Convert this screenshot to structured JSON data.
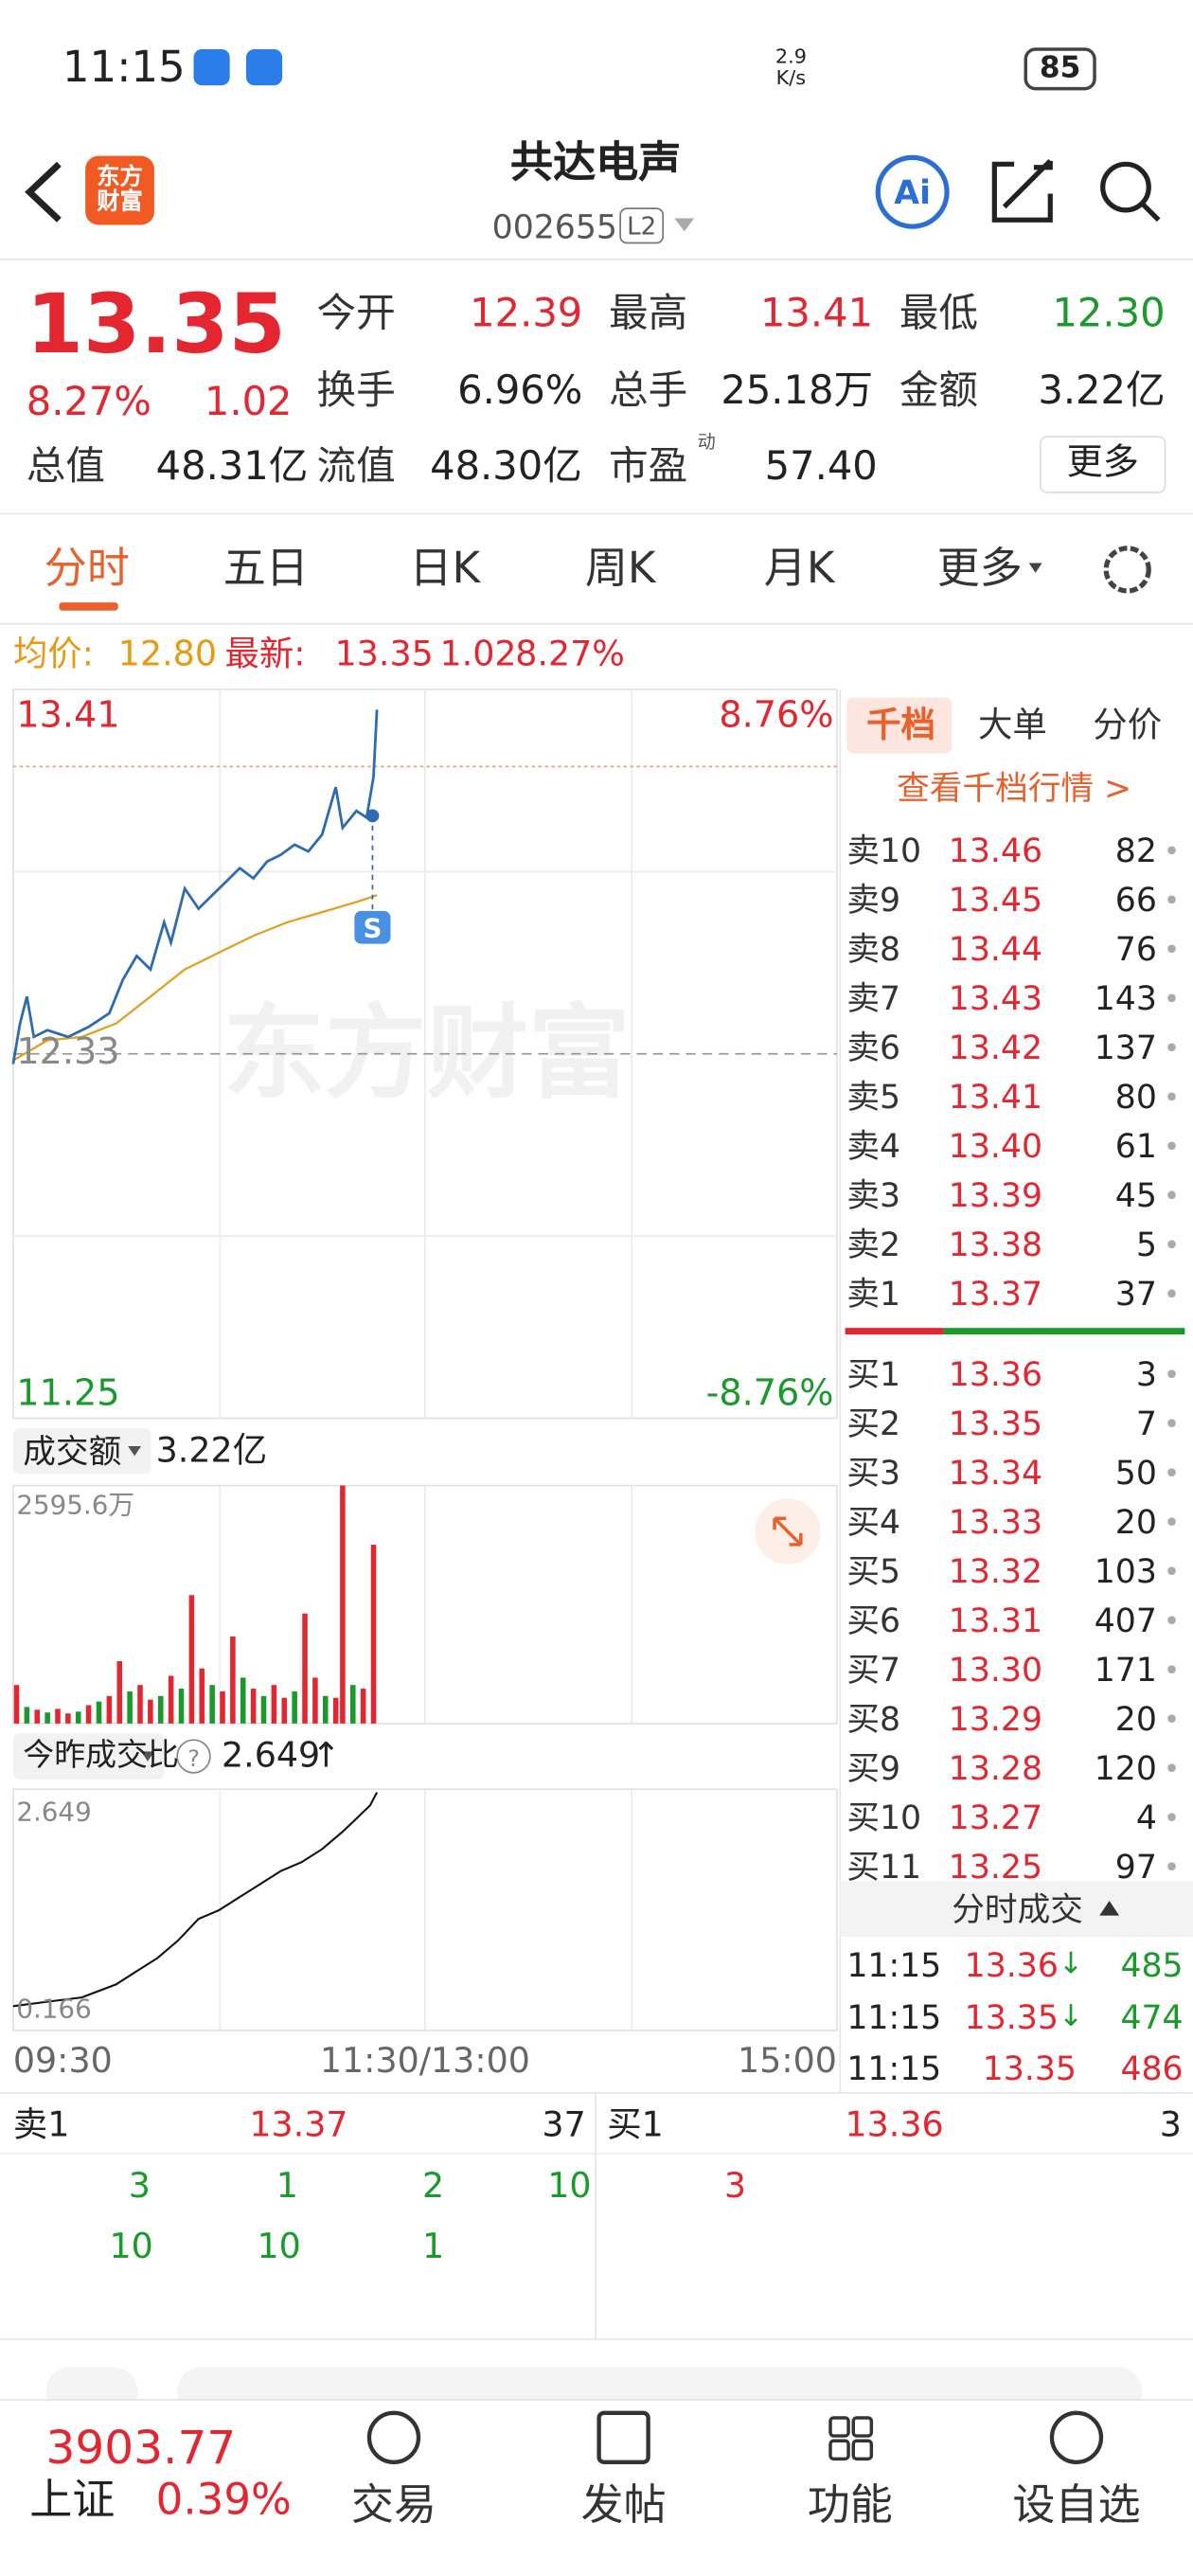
{
  "status_bar": {
    "time": "11:15",
    "net_speed": "2.9",
    "net_unit": "K/s",
    "battery": "85"
  },
  "header": {
    "logo": "东方财富",
    "title": "共达电声",
    "code": "002655",
    "level": "L2"
  },
  "quote": {
    "price": "13.35",
    "change_pct": "8.27%",
    "change": "1.02",
    "stats": [
      [
        {
          "label": "今开",
          "value": "12.39"
        },
        {
          "label": "最高",
          "value": "13.41"
        },
        {
          "label": "最低",
          "value": "12.30"
        }
      ],
      [
        {
          "label": "换手",
          "value": "6.96%"
        },
        {
          "label": "总手",
          "value": "25.18万"
        },
        {
          "label": "金额",
          "value": "3.22亿"
        }
      ],
      [
        {
          "label": "总值",
          "value": "48.31亿"
        },
        {
          "label": "流值",
          "value": "48.30亿"
        },
        {
          "label": "市盈",
          "sup": "动",
          "value": "57.40"
        }
      ]
    ],
    "more": "更多"
  },
  "tabs": [
    "分时",
    "五日",
    "日K",
    "周K",
    "月K",
    "更多"
  ],
  "info_line": {
    "avg_label": "均价:",
    "avg": "12.80",
    "latest_label": "最新:",
    "latest": "13.35",
    "change": "1.02",
    "change_pct": "8.27%"
  },
  "price_chart": {
    "type": "line",
    "watermark": "东方财富",
    "top_price": "13.41",
    "top_pct": "8.76%",
    "mid_price": "12.33",
    "bottom_price": "11.25",
    "bottom_pct": "-8.76%",
    "ylim": [
      11.25,
      13.41
    ],
    "xlim": [
      0,
      240
    ],
    "series": [
      {
        "name": "price",
        "color": "#2d6bb0",
        "x": [
          0,
          2,
          4,
          6,
          10,
          16,
          22,
          28,
          32,
          36,
          40,
          44,
          46,
          50,
          54,
          58,
          62,
          66,
          70,
          74,
          78,
          82,
          86,
          90,
          94,
          96,
          100,
          103,
          105,
          106
        ],
        "values": [
          12.3,
          12.42,
          12.5,
          12.38,
          12.4,
          12.38,
          12.41,
          12.45,
          12.55,
          12.62,
          12.58,
          12.72,
          12.66,
          12.82,
          12.76,
          12.8,
          12.84,
          12.88,
          12.85,
          12.9,
          12.92,
          12.95,
          12.93,
          12.98,
          13.12,
          13.0,
          13.05,
          13.03,
          13.15,
          13.35
        ]
      },
      {
        "name": "avg",
        "color": "#e0a020",
        "x": [
          0,
          10,
          20,
          30,
          40,
          50,
          60,
          70,
          80,
          90,
          100,
          106
        ],
        "values": [
          12.31,
          12.37,
          12.38,
          12.42,
          12.5,
          12.58,
          12.63,
          12.68,
          12.72,
          12.75,
          12.78,
          12.8
        ]
      }
    ],
    "time_labels": [
      "09:30",
      "11:30/13:00",
      "15:00"
    ]
  },
  "volume_chart": {
    "type": "bar",
    "selector": "成交额",
    "total": "3.22亿",
    "top_label": "2595.6万",
    "ylim": [
      0,
      2595.6
    ],
    "xlim": [
      0,
      240
    ],
    "x": [
      1,
      4,
      7,
      10,
      13,
      16,
      19,
      22,
      25,
      28,
      31,
      34,
      37,
      40,
      43,
      46,
      49,
      52,
      55,
      58,
      61,
      64,
      67,
      70,
      73,
      76,
      79,
      82,
      85,
      88,
      91,
      94,
      96,
      99,
      102,
      105
    ],
    "values": [
      420,
      180,
      150,
      120,
      160,
      110,
      130,
      200,
      240,
      300,
      680,
      350,
      420,
      260,
      300,
      520,
      380,
      1400,
      600,
      420,
      350,
      950,
      500,
      380,
      300,
      420,
      280,
      350,
      1200,
      500,
      300,
      280,
      2595.6,
      420,
      380,
      1950
    ],
    "colors": [
      "#e3262f",
      "#1a9a2a",
      "#e3262f",
      "#1a9a2a",
      "#e3262f",
      "#e3262f",
      "#1a9a2a",
      "#e3262f",
      "#1a9a2a",
      "#e3262f",
      "#e3262f",
      "#1a9a2a",
      "#e3262f",
      "#e3262f",
      "#1a9a2a",
      "#e3262f",
      "#1a9a2a",
      "#e3262f",
      "#e3262f",
      "#1a9a2a",
      "#e3262f",
      "#e3262f",
      "#1a9a2a",
      "#e3262f",
      "#1a9a2a",
      "#e3262f",
      "#e3262f",
      "#1a9a2a",
      "#e3262f",
      "#e3262f",
      "#1a9a2a",
      "#e3262f",
      "#e3262f",
      "#1a9a2a",
      "#e3262f",
      "#e3262f"
    ]
  },
  "ratio_chart": {
    "type": "line",
    "selector": "今昨成交比",
    "current": "2.649",
    "arrow": "↑",
    "top_label": "2.649",
    "bottom_label": "0.166",
    "ylim": [
      0.166,
      2.649
    ],
    "xlim": [
      0,
      240
    ],
    "color": "#111111",
    "x": [
      0,
      10,
      20,
      30,
      36,
      42,
      48,
      54,
      60,
      66,
      72,
      78,
      84,
      90,
      96,
      100,
      104,
      106
    ],
    "values": [
      0.2,
      0.25,
      0.3,
      0.45,
      0.6,
      0.75,
      0.95,
      1.2,
      1.3,
      1.45,
      1.6,
      1.75,
      1.85,
      2.0,
      2.2,
      2.35,
      2.5,
      2.649
    ]
  },
  "order_book": {
    "tabs": [
      "千档",
      "大单",
      "分价"
    ],
    "link": "查看千档行情 >",
    "sell": [
      [
        "卖10",
        "13.46",
        "82"
      ],
      [
        "卖9",
        "13.45",
        "66"
      ],
      [
        "卖8",
        "13.44",
        "76"
      ],
      [
        "卖7",
        "13.43",
        "143"
      ],
      [
        "卖6",
        "13.42",
        "137"
      ],
      [
        "卖5",
        "13.41",
        "80"
      ],
      [
        "卖4",
        "13.40",
        "61"
      ],
      [
        "卖3",
        "13.39",
        "45"
      ],
      [
        "卖2",
        "13.38",
        "5"
      ],
      [
        "卖1",
        "13.37",
        "37"
      ]
    ],
    "buy": [
      [
        "买1",
        "13.36",
        "3"
      ],
      [
        "买2",
        "13.35",
        "7"
      ],
      [
        "买3",
        "13.34",
        "50"
      ],
      [
        "买4",
        "13.33",
        "20"
      ],
      [
        "买5",
        "13.32",
        "103"
      ],
      [
        "买6",
        "13.31",
        "407"
      ],
      [
        "买7",
        "13.30",
        "171"
      ],
      [
        "买8",
        "13.29",
        "20"
      ],
      [
        "买9",
        "13.28",
        "120"
      ],
      [
        "买10",
        "13.27",
        "4"
      ],
      [
        "买11",
        "13.25",
        "97"
      ]
    ]
  },
  "ticks": {
    "title": "分时成交",
    "rows": [
      {
        "time": "11:15",
        "price": "13.36",
        "arrow": "↓",
        "qty": "485"
      },
      {
        "time": "11:15",
        "price": "13.35",
        "arrow": "↓",
        "qty": "474"
      },
      {
        "time": "11:15",
        "price": "13.35",
        "qty": "486"
      }
    ]
  },
  "bottom_panel": {
    "sell": [
      "卖1",
      "13.37",
      "37"
    ],
    "buy": [
      "买1",
      "13.36",
      "3"
    ],
    "sell_orders": [
      [
        "3",
        "1",
        "2",
        "10"
      ],
      [
        "10",
        "10",
        "1"
      ]
    ],
    "buy_orders": [
      [
        "3"
      ]
    ]
  },
  "nav": {
    "index_value": "3903.77",
    "index_name": "上证",
    "index_change": "0.39%",
    "items": [
      "交易",
      "发帖",
      "功能",
      "设自选"
    ]
  }
}
